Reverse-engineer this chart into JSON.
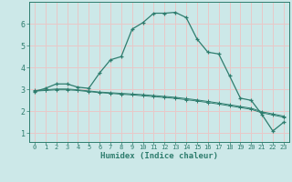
{
  "xlabel": "Humidex (Indice chaleur)",
  "background_color": "#cce8e8",
  "grid_color": "#e8c8c8",
  "line_color": "#2e7d6e",
  "xlim": [
    -0.5,
    23.5
  ],
  "ylim": [
    0.6,
    7.0
  ],
  "x_ticks": [
    0,
    1,
    2,
    3,
    4,
    5,
    6,
    7,
    8,
    9,
    10,
    11,
    12,
    13,
    14,
    15,
    16,
    17,
    18,
    19,
    20,
    21,
    22,
    23
  ],
  "y_ticks": [
    1,
    2,
    3,
    4,
    5,
    6
  ],
  "line1_x": [
    0,
    1,
    2,
    3,
    4,
    5,
    6,
    7,
    8,
    9,
    10,
    11,
    12,
    13,
    14,
    15,
    16,
    17,
    18,
    19,
    20,
    21,
    22,
    23
  ],
  "line1_y": [
    2.9,
    3.05,
    3.25,
    3.25,
    3.1,
    3.05,
    3.75,
    4.35,
    4.5,
    5.75,
    6.05,
    6.48,
    6.48,
    6.52,
    6.28,
    5.3,
    4.7,
    4.62,
    3.62,
    2.6,
    2.5,
    1.85,
    1.1,
    1.5
  ],
  "line2_x": [
    0,
    1,
    2,
    3,
    4,
    5,
    6,
    7,
    8,
    9,
    10,
    11,
    12,
    13,
    14,
    15,
    16,
    17,
    18,
    19,
    20,
    21,
    22,
    23
  ],
  "line2_y": [
    2.95,
    2.98,
    3.02,
    3.02,
    2.98,
    2.93,
    2.88,
    2.85,
    2.82,
    2.79,
    2.76,
    2.72,
    2.68,
    2.64,
    2.58,
    2.52,
    2.45,
    2.38,
    2.3,
    2.22,
    2.14,
    1.98,
    1.88,
    1.78
  ],
  "line3_x": [
    0,
    1,
    2,
    3,
    4,
    5,
    6,
    7,
    8,
    9,
    10,
    11,
    12,
    13,
    14,
    15,
    16,
    17,
    18,
    19,
    20,
    21,
    22,
    23
  ],
  "line3_y": [
    2.92,
    2.95,
    2.98,
    2.98,
    2.95,
    2.9,
    2.85,
    2.82,
    2.78,
    2.75,
    2.71,
    2.67,
    2.63,
    2.59,
    2.53,
    2.47,
    2.4,
    2.33,
    2.25,
    2.17,
    2.09,
    1.93,
    1.83,
    1.73
  ]
}
